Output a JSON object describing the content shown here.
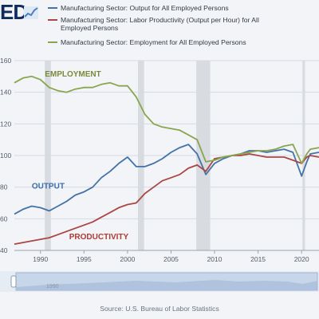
{
  "header": {
    "logo_text": "ED",
    "logo_icon": "chart-line-icon"
  },
  "legend": [
    {
      "label": "Manufacturing Sector: Output for All Employed Persons",
      "color": "#4572a7"
    },
    {
      "label": "Manufacturing Sector: Labor Productivity (Output per Hour) for All Employed Persons",
      "color": "#aa4643"
    },
    {
      "label": "Manufacturing Sector: Employment for All Employed Persons",
      "color": "#89a54e"
    }
  ],
  "chart_data": {
    "type": "line",
    "xlim": [
      1987,
      2022
    ],
    "ylim": [
      40,
      160
    ],
    "x_ticks": [
      "1990",
      "1995",
      "2000",
      "2005",
      "2010",
      "2015",
      "2020"
    ],
    "y_ticks": [
      "40",
      "60",
      "80",
      "100",
      "120",
      "140",
      "160"
    ],
    "grid": true,
    "recessions": [
      [
        1990.5,
        1991.2
      ],
      [
        2001.2,
        2001.9
      ],
      [
        2007.9,
        2009.5
      ],
      [
        2020.1,
        2020.4
      ]
    ],
    "annotations": [
      {
        "text": "EMPLOYMENT",
        "color": "#7a8a3a",
        "x": 1990.5,
        "y": 150
      },
      {
        "text": "OUTPUT",
        "color": "#3f6ea8",
        "x": 1989.0,
        "y": 79
      },
      {
        "text": "PRODUCTIVITY",
        "color": "#b03a34",
        "x": 1993.3,
        "y": 47
      }
    ],
    "series": [
      {
        "name": "Manufacturing Sector: Output for All Employed Persons",
        "color": "#4572a7",
        "points": [
          [
            1987,
            63
          ],
          [
            1988,
            66
          ],
          [
            1989,
            68
          ],
          [
            1990,
            67
          ],
          [
            1991,
            65
          ],
          [
            1992,
            68
          ],
          [
            1993,
            71
          ],
          [
            1994,
            75
          ],
          [
            1995,
            77
          ],
          [
            1996,
            80
          ],
          [
            1997,
            86
          ],
          [
            1998,
            90
          ],
          [
            1999,
            95
          ],
          [
            2000,
            99
          ],
          [
            2001,
            93
          ],
          [
            2002,
            93
          ],
          [
            2003,
            95
          ],
          [
            2004,
            98
          ],
          [
            2005,
            102
          ],
          [
            2006,
            105
          ],
          [
            2007,
            107
          ],
          [
            2008,
            101
          ],
          [
            2009,
            88
          ],
          [
            2010,
            95
          ],
          [
            2011,
            98
          ],
          [
            2012,
            100
          ],
          [
            2013,
            101
          ],
          [
            2014,
            103
          ],
          [
            2015,
            103
          ],
          [
            2016,
            102
          ],
          [
            2017,
            103
          ],
          [
            2018,
            104
          ],
          [
            2019,
            102
          ],
          [
            2020,
            87
          ],
          [
            2020.6,
            96
          ],
          [
            2021,
            101
          ],
          [
            2022,
            102
          ]
        ]
      },
      {
        "name": "Manufacturing Sector: Labor Productivity (Output per Hour) for All Employed Persons",
        "color": "#aa4643",
        "points": [
          [
            1987,
            44
          ],
          [
            1988,
            45
          ],
          [
            1989,
            46
          ],
          [
            1990,
            47
          ],
          [
            1991,
            48
          ],
          [
            1992,
            50
          ],
          [
            1993,
            52
          ],
          [
            1994,
            54
          ],
          [
            1995,
            56
          ],
          [
            1996,
            58
          ],
          [
            1997,
            61
          ],
          [
            1998,
            64
          ],
          [
            1999,
            67
          ],
          [
            2000,
            69
          ],
          [
            2001,
            70
          ],
          [
            2002,
            76
          ],
          [
            2003,
            80
          ],
          [
            2004,
            84
          ],
          [
            2005,
            86
          ],
          [
            2006,
            88
          ],
          [
            2007,
            92
          ],
          [
            2008,
            94
          ],
          [
            2009,
            90
          ],
          [
            2010,
            98
          ],
          [
            2011,
            99
          ],
          [
            2012,
            100
          ],
          [
            2013,
            100
          ],
          [
            2014,
            101
          ],
          [
            2015,
            100
          ],
          [
            2016,
            99
          ],
          [
            2017,
            99
          ],
          [
            2018,
            99
          ],
          [
            2019,
            97
          ],
          [
            2020,
            95
          ],
          [
            2020.6,
            99
          ],
          [
            2021,
            100
          ],
          [
            2022,
            99
          ]
        ]
      },
      {
        "name": "Manufacturing Sector: Employment for All Employed Persons",
        "color": "#89a54e",
        "points": [
          [
            1987,
            146
          ],
          [
            1988,
            149
          ],
          [
            1989,
            150
          ],
          [
            1990,
            148
          ],
          [
            1991,
            143
          ],
          [
            1992,
            141
          ],
          [
            1993,
            140
          ],
          [
            1994,
            142
          ],
          [
            1995,
            143
          ],
          [
            1996,
            143
          ],
          [
            1997,
            145
          ],
          [
            1998,
            146
          ],
          [
            1999,
            144
          ],
          [
            2000,
            144
          ],
          [
            2001,
            137
          ],
          [
            2002,
            126
          ],
          [
            2003,
            120
          ],
          [
            2004,
            118
          ],
          [
            2005,
            117
          ],
          [
            2006,
            116
          ],
          [
            2007,
            113
          ],
          [
            2008,
            110
          ],
          [
            2009,
            96
          ],
          [
            2010,
            97
          ],
          [
            2011,
            99
          ],
          [
            2012,
            100
          ],
          [
            2013,
            101
          ],
          [
            2014,
            102
          ],
          [
            2015,
            103
          ],
          [
            2016,
            103
          ],
          [
            2017,
            104
          ],
          [
            2018,
            106
          ],
          [
            2019,
            107
          ],
          [
            2020,
            95
          ],
          [
            2020.6,
            101
          ],
          [
            2021,
            104
          ],
          [
            2022,
            105
          ]
        ]
      }
    ]
  },
  "navigator": {
    "tick": "1990"
  },
  "source": "Source: U.S. Bureau of Labor Statistics"
}
